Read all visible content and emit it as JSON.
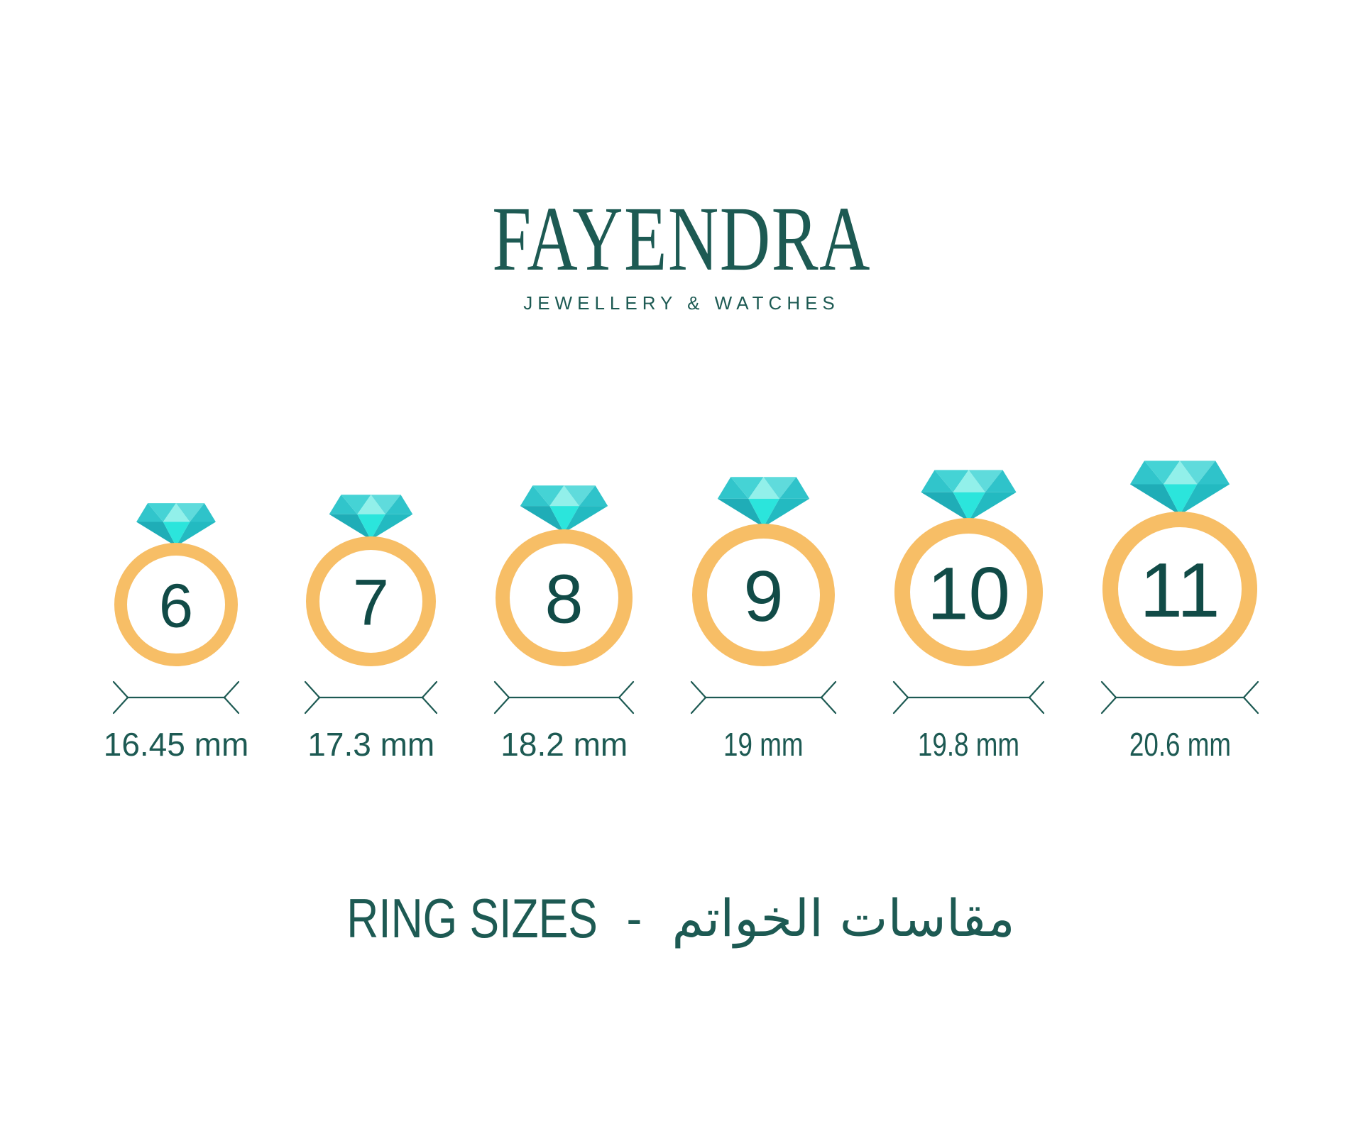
{
  "brand": {
    "name": "FAYENDRA",
    "tagline": "JEWELLERY & WATCHES"
  },
  "title": {
    "en": "RING SIZES",
    "separator": "-",
    "ar": "مقاسات الخواتم"
  },
  "rings": [
    {
      "size": "6",
      "mm": 16.45,
      "diameter_label": "16.45 mm"
    },
    {
      "size": "7",
      "mm": 17.3,
      "diameter_label": "17.3 mm"
    },
    {
      "size": "8",
      "mm": 18.2,
      "diameter_label": "18.2 mm"
    },
    {
      "size": "9",
      "mm": 19,
      "diameter_label": "19 mm"
    },
    {
      "size": "10",
      "mm": 19.8,
      "diameter_label": "19.8 mm"
    },
    {
      "size": "11",
      "mm": 20.6,
      "diameter_label": "20.6 mm"
    }
  ],
  "colors": {
    "teal": "#1D5A53",
    "teal_dark": "#114B47",
    "band_gold": "#F7BE66",
    "arrow_line": "#1D5A53",
    "diamond": {
      "corner_left": "#31C5CB",
      "mid_left": "#45D3D5",
      "pale_center": "#92F0EA",
      "mid_right": "#5FDBDC",
      "corner_right": "#2FC3CA",
      "dark_left": "#1FADB7",
      "bright_center": "#2BE5DC",
      "dark_right": "#23BAC1"
    }
  }
}
